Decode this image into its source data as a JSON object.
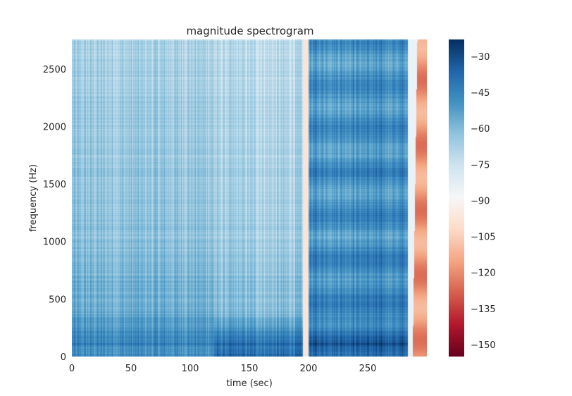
{
  "chart_data": {
    "type": "heatmap",
    "title": "magnitude spectrogram",
    "xlabel": "time (sec)",
    "ylabel": "frequency (Hz)",
    "xlim": [
      0,
      300
    ],
    "ylim": [
      0,
      2756
    ],
    "x_ticks": [
      0,
      50,
      100,
      150,
      200,
      250
    ],
    "y_ticks": [
      0,
      500,
      1000,
      1500,
      2000,
      2500
    ],
    "colorbar": {
      "min": -155,
      "max": -23,
      "ticks": [
        -30,
        -45,
        -60,
        -75,
        -90,
        -105,
        -120,
        -135,
        -150
      ],
      "colormap": "RdBu"
    },
    "signal_end_sec": 288,
    "gap_sec": [
      195,
      200
    ],
    "regions": [
      {
        "t_range": [
          0,
          170
        ],
        "low_band_db": -40,
        "mid_band_db": -55,
        "high_band_db": -68
      },
      {
        "t_range": [
          120,
          195
        ],
        "low_band_db": -30,
        "mid_band_db": -60,
        "high_band_db": -72
      },
      {
        "t_range": [
          195,
          200
        ],
        "low_band_db": -100,
        "mid_band_db": -100,
        "high_band_db": -100
      },
      {
        "t_range": [
          200,
          288
        ],
        "low_band_db": -32,
        "mid_band_db": -45,
        "high_band_db": -50
      },
      {
        "t_range": [
          288,
          300
        ],
        "low_band_db": -120,
        "mid_band_db": -120,
        "high_band_db": -120
      }
    ]
  }
}
